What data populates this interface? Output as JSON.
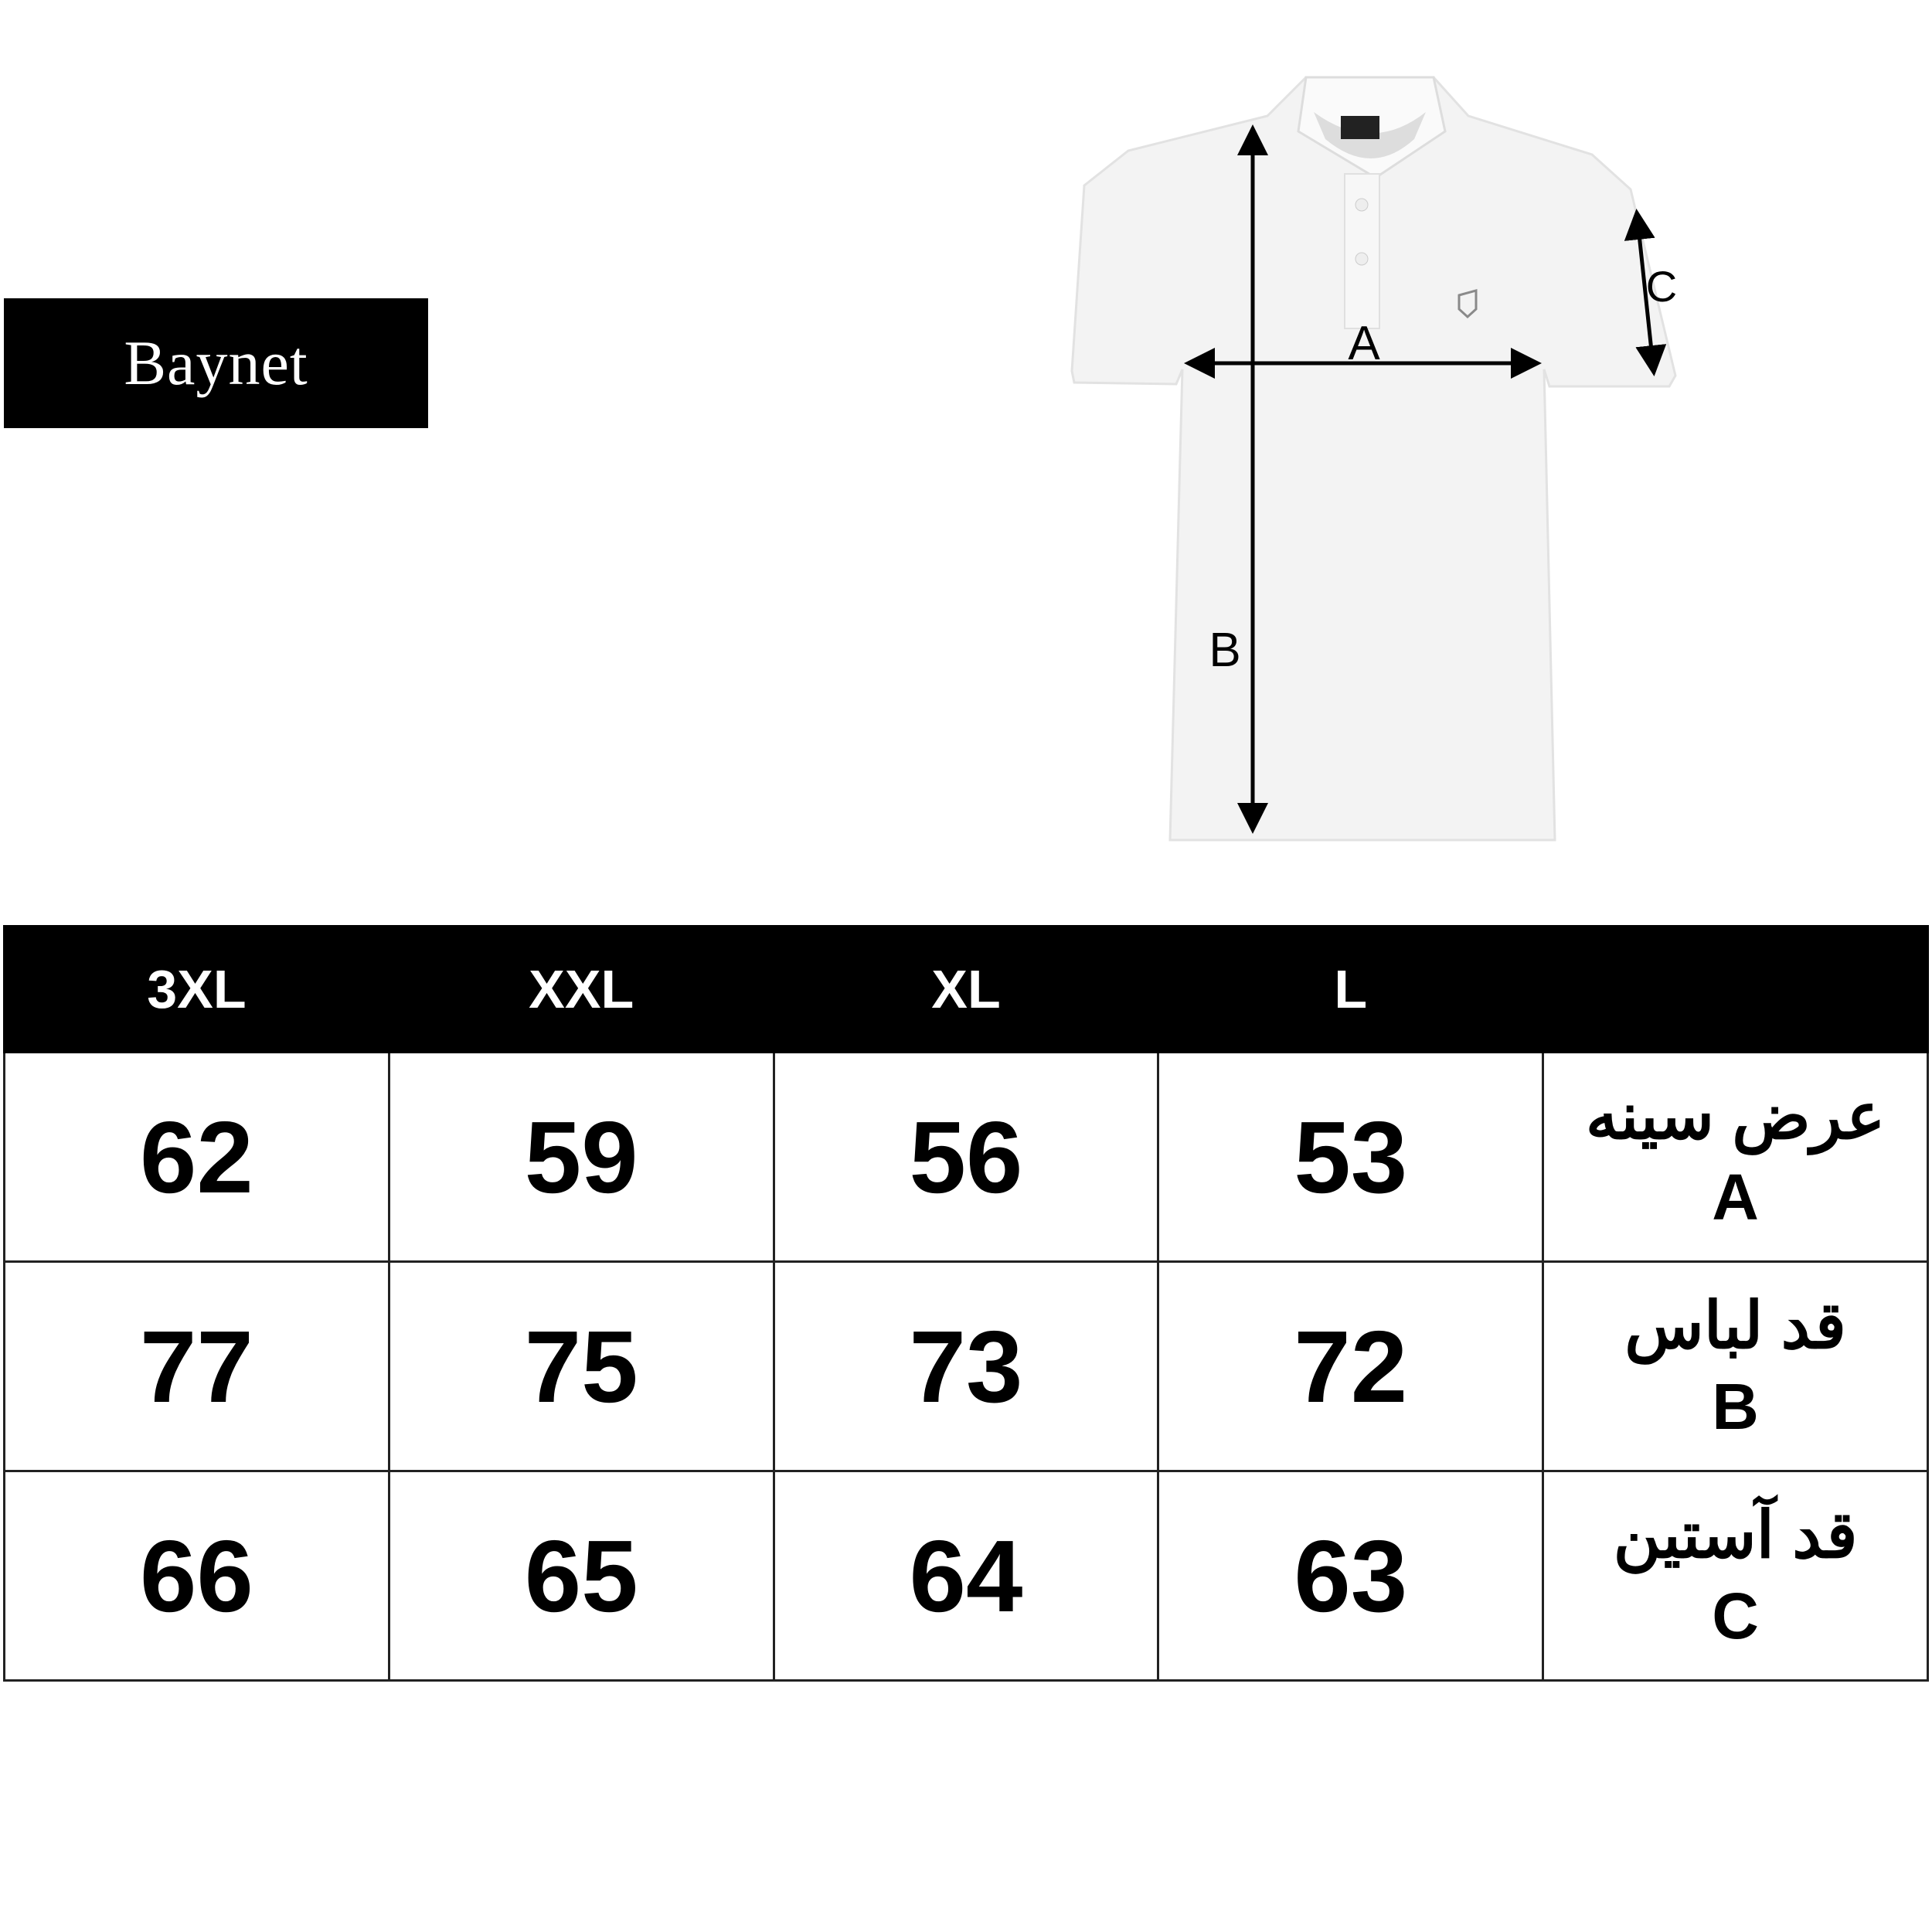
{
  "brand": {
    "logo_text": "Baynet"
  },
  "diagram": {
    "labels": {
      "a": "A",
      "b": "B",
      "c": "C"
    }
  },
  "size_table": {
    "headers": [
      "3XL",
      "XXL",
      "XL",
      "L",
      ""
    ],
    "rows": [
      {
        "values": [
          "62",
          "59",
          "56",
          "53"
        ],
        "label": "عرض سینه",
        "code": "A"
      },
      {
        "values": [
          "77",
          "75",
          "73",
          "72"
        ],
        "label": "قد لباس",
        "code": "B"
      },
      {
        "values": [
          "66",
          "65",
          "64",
          "63"
        ],
        "label": "قد آستین",
        "code": "C"
      }
    ]
  }
}
